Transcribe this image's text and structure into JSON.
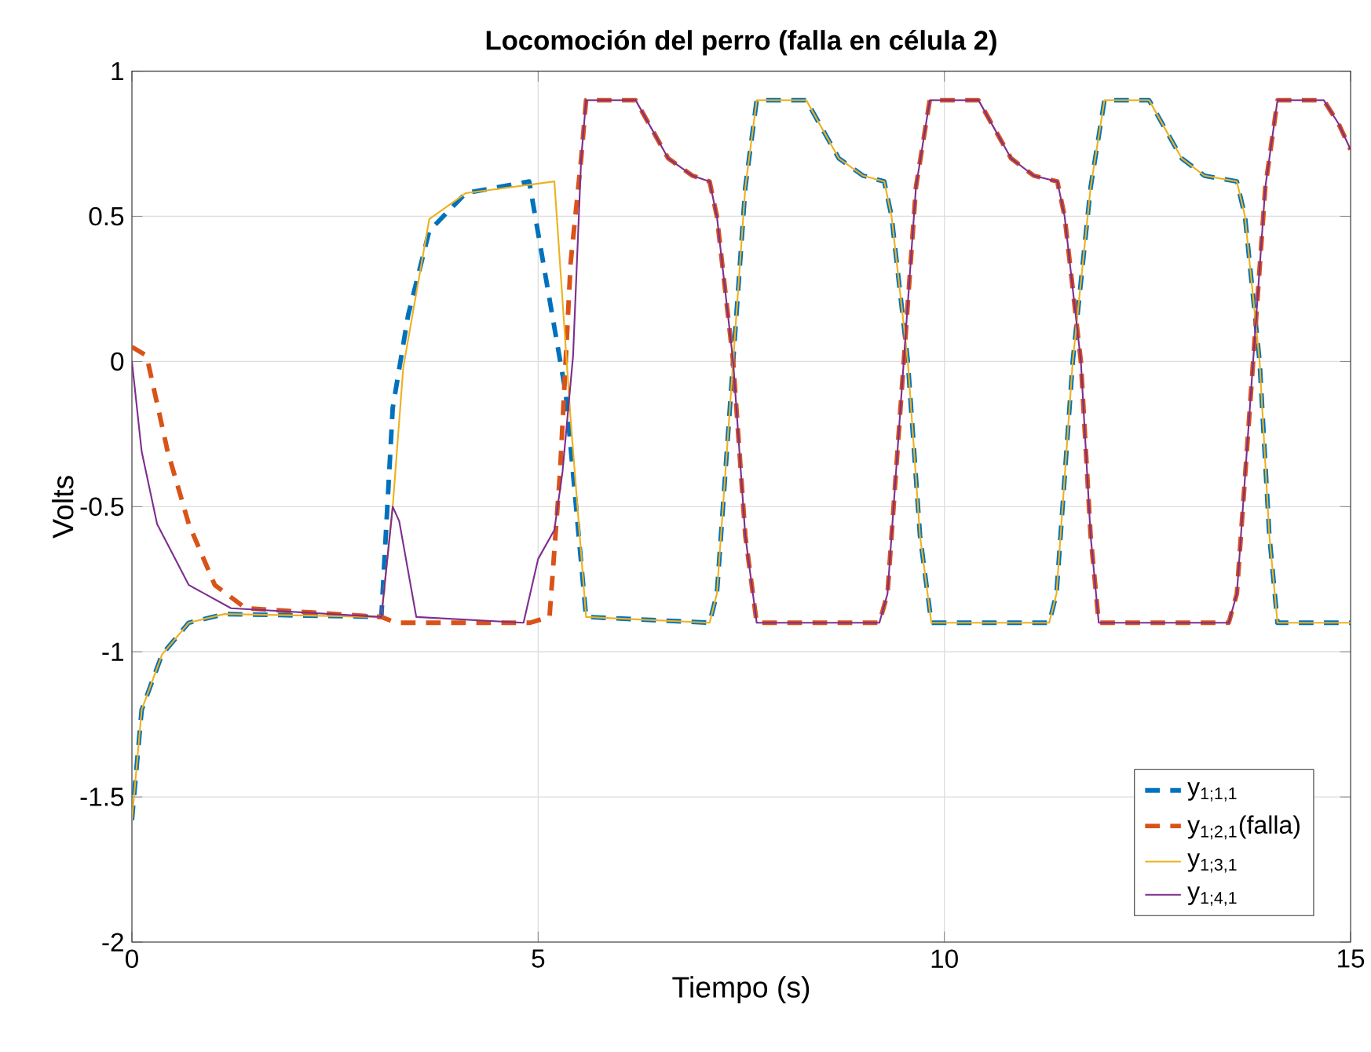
{
  "chart_data": {
    "type": "line",
    "title": "Locomoción del perro (falla en célula 2)",
    "xlabel": "Tiempo (s)",
    "ylabel": "Volts",
    "xlim": [
      0,
      15
    ],
    "ylim": [
      -2,
      1
    ],
    "xticks": [
      0,
      5,
      10,
      15
    ],
    "yticks": [
      -2,
      -1.5,
      -1,
      -0.5,
      0,
      0.5,
      1
    ],
    "grid": true,
    "legend": "bottom right",
    "marker": "none",
    "series": [
      {
        "name": "y$_{1;1,1}$",
        "color": "#0072bd",
        "line_style": "dashed",
        "x": [
          0,
          0.12,
          0.37,
          0.7,
          1.14,
          3.07,
          3.21,
          3.4,
          3.66,
          4.11,
          4.89,
          5.34,
          5.59,
          7.11,
          7.2,
          7.4,
          7.55,
          7.69,
          8.3,
          8.5,
          8.7,
          9.0,
          9.26,
          9.35,
          9.55,
          9.7,
          9.84,
          11.29,
          11.38,
          11.58,
          11.8,
          11.97,
          12.52,
          12.72,
          12.92,
          13.2,
          13.6,
          13.7,
          13.88,
          14.0,
          14.1,
          15
        ],
        "values": [
          -1.58,
          -1.2,
          -1.01,
          -0.9,
          -0.87,
          -0.88,
          -0.16,
          0.16,
          0.45,
          0.58,
          0.62,
          -0.11,
          -0.88,
          -0.9,
          -0.8,
          0.0,
          0.6,
          0.9,
          0.9,
          0.8,
          0.7,
          0.64,
          0.62,
          0.5,
          0.0,
          -0.6,
          -0.9,
          -0.9,
          -0.8,
          0.0,
          0.6,
          0.9,
          0.9,
          0.8,
          0.7,
          0.64,
          0.62,
          0.5,
          0.0,
          -0.6,
          -0.9,
          -0.9
        ]
      },
      {
        "name": "y$_{1;2,1}$(falla)",
        "color": "#d95319",
        "line_style": "dashed",
        "x": [
          0,
          0.18,
          0.44,
          0.7,
          1.02,
          1.4,
          3.07,
          3.25,
          4.9,
          5.14,
          5.27,
          5.4,
          5.53,
          5.59,
          6.2,
          6.4,
          6.6,
          6.9,
          7.11,
          7.2,
          7.4,
          7.55,
          7.69,
          9.2,
          9.3,
          9.5,
          9.65,
          9.82,
          10.42,
          10.62,
          10.82,
          11.1,
          11.39,
          11.48,
          11.68,
          11.8,
          11.9,
          13.5,
          13.6,
          13.8,
          13.95,
          14.1,
          14.67,
          14.85,
          15
        ],
        "values": [
          0.05,
          0.02,
          -0.31,
          -0.56,
          -0.77,
          -0.85,
          -0.88,
          -0.9,
          -0.9,
          -0.88,
          -0.38,
          0.34,
          0.7,
          0.9,
          0.9,
          0.8,
          0.7,
          0.64,
          0.62,
          0.5,
          0.0,
          -0.6,
          -0.9,
          -0.9,
          -0.8,
          0.0,
          0.6,
          0.9,
          0.9,
          0.8,
          0.7,
          0.64,
          0.62,
          0.5,
          0.0,
          -0.6,
          -0.9,
          -0.9,
          -0.8,
          0.0,
          0.6,
          0.9,
          0.9,
          0.82,
          0.73
        ]
      },
      {
        "name": "y$_{1;3,1}$",
        "color": "#edb120",
        "line_style": "solid",
        "x": [
          0,
          0.12,
          0.37,
          0.7,
          1.14,
          3.07,
          3.21,
          3.34,
          3.66,
          4.11,
          5.2,
          5.4,
          5.59,
          7.11,
          7.2,
          7.4,
          7.55,
          7.69,
          8.3,
          8.5,
          8.7,
          9.0,
          9.26,
          9.35,
          9.55,
          9.7,
          9.84,
          11.29,
          11.38,
          11.58,
          11.8,
          11.97,
          12.52,
          12.72,
          12.92,
          13.2,
          13.6,
          13.7,
          13.88,
          14.0,
          14.1,
          15
        ],
        "values": [
          -1.58,
          -1.2,
          -1.01,
          -0.9,
          -0.87,
          -0.88,
          -0.5,
          -0.02,
          0.49,
          0.58,
          0.62,
          -0.2,
          -0.88,
          -0.9,
          -0.8,
          0.0,
          0.6,
          0.9,
          0.9,
          0.8,
          0.7,
          0.64,
          0.62,
          0.5,
          0.0,
          -0.6,
          -0.9,
          -0.9,
          -0.8,
          0.0,
          0.6,
          0.9,
          0.9,
          0.8,
          0.7,
          0.64,
          0.62,
          0.5,
          0.0,
          -0.6,
          -0.9,
          -0.9
        ]
      },
      {
        "name": "y$_{1;4,1}$",
        "color": "#7e2f8e",
        "line_style": "solid",
        "x": [
          0,
          0.12,
          0.31,
          0.7,
          1.22,
          3.07,
          3.21,
          3.29,
          3.5,
          4.82,
          5.0,
          5.2,
          5.3,
          5.43,
          5.53,
          5.59,
          6.2,
          6.4,
          6.6,
          6.9,
          7.11,
          7.2,
          7.4,
          7.55,
          7.69,
          9.2,
          9.3,
          9.5,
          9.65,
          9.82,
          10.42,
          10.62,
          10.82,
          11.1,
          11.39,
          11.48,
          11.68,
          11.8,
          11.9,
          13.5,
          13.6,
          13.8,
          13.95,
          14.1,
          14.67,
          14.85,
          15
        ],
        "values": [
          0,
          -0.31,
          -0.56,
          -0.77,
          -0.85,
          -0.88,
          -0.5,
          -0.55,
          -0.88,
          -0.9,
          -0.68,
          -0.58,
          -0.38,
          0.02,
          0.7,
          0.9,
          0.9,
          0.8,
          0.7,
          0.64,
          0.62,
          0.5,
          0.0,
          -0.6,
          -0.9,
          -0.9,
          -0.8,
          0.0,
          0.6,
          0.9,
          0.9,
          0.8,
          0.7,
          0.64,
          0.62,
          0.5,
          0.0,
          -0.6,
          -0.9,
          -0.9,
          -0.8,
          0.0,
          0.6,
          0.9,
          0.9,
          0.82,
          0.73
        ]
      }
    ]
  }
}
